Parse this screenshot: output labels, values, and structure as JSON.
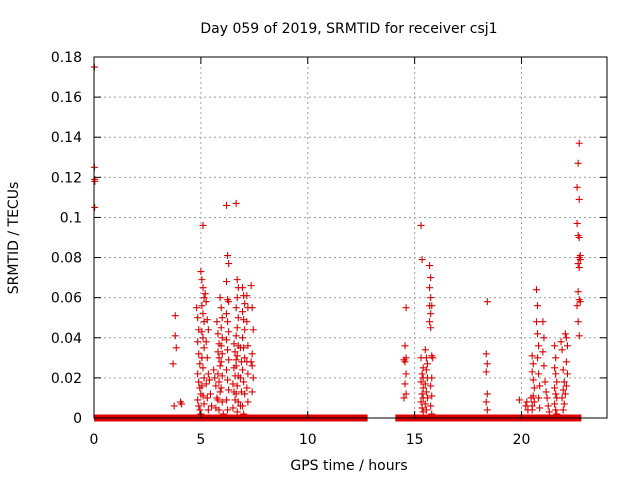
{
  "chart_data": {
    "type": "scatter",
    "title": "Day 059 of 2019, SRMTID for receiver csj1",
    "xlabel": "GPS time / hours",
    "ylabel": "SRMTID / TECUs",
    "xlim": [
      0,
      24
    ],
    "ylim": [
      0,
      0.18
    ],
    "x_ticks": [
      0,
      5,
      10,
      15,
      20
    ],
    "y_ticks": [
      0,
      0.02,
      0.04,
      0.06,
      0.08,
      0.1,
      0.12,
      0.14,
      0.16,
      0.18
    ],
    "x_tick_labels": [
      "0",
      "5",
      "10",
      "15",
      "20"
    ],
    "y_tick_labels": [
      "0",
      "0.02",
      "0.04",
      "0.06",
      "0.08",
      "0.1",
      "0.12",
      "0.14",
      "0.16",
      "0.18"
    ],
    "grid": true,
    "marker": "+",
    "color": "#dd0000",
    "baseline_segments": [
      [
        0,
        12.8
      ],
      [
        14.1,
        22.8
      ]
    ],
    "points": [
      [
        0.02,
        0.175
      ],
      [
        0.02,
        0.125
      ],
      [
        0.03,
        0.119
      ],
      [
        0.04,
        0.118
      ],
      [
        0.03,
        0.105
      ],
      [
        3.7,
        0.027
      ],
      [
        3.8,
        0.051
      ],
      [
        3.8,
        0.041
      ],
      [
        3.85,
        0.035
      ],
      [
        3.75,
        0.006
      ],
      [
        4.05,
        0.008
      ],
      [
        4.1,
        0.007
      ],
      [
        4.8,
        0.055
      ],
      [
        4.85,
        0.05
      ],
      [
        4.9,
        0.044
      ],
      [
        4.85,
        0.038
      ],
      [
        4.9,
        0.032
      ],
      [
        4.95,
        0.027
      ],
      [
        4.85,
        0.022
      ],
      [
        4.9,
        0.018
      ],
      [
        4.95,
        0.015
      ],
      [
        5.0,
        0.012
      ],
      [
        4.85,
        0.009
      ],
      [
        4.9,
        0.006
      ],
      [
        4.95,
        0.004
      ],
      [
        5.0,
        0.002
      ],
      [
        5.0,
        0.073
      ],
      [
        5.05,
        0.069
      ],
      [
        5.1,
        0.065
      ],
      [
        5.15,
        0.06
      ],
      [
        5.05,
        0.056
      ],
      [
        5.1,
        0.052
      ],
      [
        5.15,
        0.048
      ],
      [
        5.05,
        0.043
      ],
      [
        5.1,
        0.04
      ],
      [
        5.15,
        0.035
      ],
      [
        5.05,
        0.03
      ],
      [
        5.1,
        0.025
      ],
      [
        5.15,
        0.02
      ],
      [
        5.05,
        0.016
      ],
      [
        5.1,
        0.011
      ],
      [
        5.15,
        0.007
      ],
      [
        5.1,
        0.096
      ],
      [
        5.2,
        0.062
      ],
      [
        5.25,
        0.058
      ],
      [
        5.3,
        0.049
      ],
      [
        5.35,
        0.044
      ],
      [
        5.25,
        0.038
      ],
      [
        5.3,
        0.03
      ],
      [
        5.35,
        0.022
      ],
      [
        5.25,
        0.017
      ],
      [
        5.3,
        0.01
      ],
      [
        5.35,
        0.004
      ],
      [
        5.4,
        0.019
      ],
      [
        5.45,
        0.012
      ],
      [
        5.5,
        0.006
      ],
      [
        5.6,
        0.024
      ],
      [
        5.65,
        0.02
      ],
      [
        5.7,
        0.016
      ],
      [
        5.75,
        0.01
      ],
      [
        5.7,
        0.005
      ],
      [
        5.75,
        0.048
      ],
      [
        5.8,
        0.042
      ],
      [
        5.85,
        0.037
      ],
      [
        5.8,
        0.033
      ],
      [
        5.85,
        0.03
      ],
      [
        5.9,
        0.026
      ],
      [
        5.8,
        0.022
      ],
      [
        5.85,
        0.018
      ],
      [
        5.9,
        0.013
      ],
      [
        5.8,
        0.009
      ],
      [
        5.85,
        0.004
      ],
      [
        5.9,
        0.06
      ],
      [
        5.95,
        0.055
      ],
      [
        6.0,
        0.05
      ],
      [
        5.95,
        0.045
      ],
      [
        6.0,
        0.04
      ],
      [
        5.95,
        0.036
      ],
      [
        6.0,
        0.032
      ],
      [
        5.95,
        0.028
      ],
      [
        6.0,
        0.021
      ],
      [
        5.95,
        0.015
      ],
      [
        6.0,
        0.008
      ],
      [
        6.05,
        0.002
      ],
      [
        6.2,
        0.106
      ],
      [
        6.25,
        0.081
      ],
      [
        6.3,
        0.077
      ],
      [
        6.2,
        0.068
      ],
      [
        6.25,
        0.059
      ],
      [
        6.3,
        0.058
      ],
      [
        6.2,
        0.052
      ],
      [
        6.25,
        0.048
      ],
      [
        6.3,
        0.043
      ],
      [
        6.2,
        0.039
      ],
      [
        6.25,
        0.034
      ],
      [
        6.3,
        0.029
      ],
      [
        6.2,
        0.024
      ],
      [
        6.25,
        0.019
      ],
      [
        6.3,
        0.014
      ],
      [
        6.2,
        0.009
      ],
      [
        6.25,
        0.004
      ],
      [
        6.5,
        0.017
      ],
      [
        6.55,
        0.013
      ],
      [
        6.6,
        0.009
      ],
      [
        6.5,
        0.005
      ],
      [
        6.55,
        0.037
      ],
      [
        6.6,
        0.033
      ],
      [
        6.65,
        0.029
      ],
      [
        6.55,
        0.025
      ],
      [
        6.6,
        0.021
      ],
      [
        6.65,
        0.107
      ],
      [
        6.7,
        0.069
      ],
      [
        6.75,
        0.065
      ],
      [
        6.7,
        0.06
      ],
      [
        6.65,
        0.055
      ],
      [
        6.75,
        0.05
      ],
      [
        6.7,
        0.045
      ],
      [
        6.65,
        0.041
      ],
      [
        6.75,
        0.036
      ],
      [
        6.7,
        0.031
      ],
      [
        6.65,
        0.026
      ],
      [
        6.75,
        0.021
      ],
      [
        6.7,
        0.016
      ],
      [
        6.65,
        0.012
      ],
      [
        6.75,
        0.008
      ],
      [
        6.7,
        0.003
      ],
      [
        6.85,
        0.035
      ],
      [
        6.9,
        0.028
      ],
      [
        6.85,
        0.02
      ],
      [
        6.9,
        0.013
      ],
      [
        6.85,
        0.006
      ],
      [
        6.95,
        0.065
      ],
      [
        7.0,
        0.061
      ],
      [
        7.05,
        0.057
      ],
      [
        6.95,
        0.053
      ],
      [
        7.0,
        0.049
      ],
      [
        7.05,
        0.044
      ],
      [
        6.95,
        0.04
      ],
      [
        7.0,
        0.035
      ],
      [
        7.05,
        0.03
      ],
      [
        6.95,
        0.024
      ],
      [
        7.0,
        0.018
      ],
      [
        7.05,
        0.012
      ],
      [
        6.95,
        0.006
      ],
      [
        7.0,
        0.002
      ],
      [
        7.15,
        0.061
      ],
      [
        7.2,
        0.055
      ],
      [
        7.15,
        0.048
      ],
      [
        7.2,
        0.036
      ],
      [
        7.15,
        0.028
      ],
      [
        7.2,
        0.022
      ],
      [
        7.15,
        0.015
      ],
      [
        7.2,
        0.008
      ],
      [
        7.35,
        0.066
      ],
      [
        7.4,
        0.055
      ],
      [
        7.45,
        0.044
      ],
      [
        7.4,
        0.032
      ],
      [
        7.35,
        0.028
      ],
      [
        7.4,
        0.026
      ],
      [
        7.45,
        0.02
      ],
      [
        7.4,
        0.013
      ],
      [
        14.6,
        0.055
      ],
      [
        14.55,
        0.036
      ],
      [
        14.6,
        0.03
      ],
      [
        14.5,
        0.029
      ],
      [
        14.55,
        0.028
      ],
      [
        14.6,
        0.022
      ],
      [
        14.55,
        0.017
      ],
      [
        14.6,
        0.012
      ],
      [
        14.5,
        0.01
      ],
      [
        15.3,
        0.096
      ],
      [
        15.35,
        0.079
      ],
      [
        15.3,
        0.03
      ],
      [
        15.4,
        0.025
      ],
      [
        15.35,
        0.022
      ],
      [
        15.4,
        0.02
      ],
      [
        15.3,
        0.018
      ],
      [
        15.4,
        0.015
      ],
      [
        15.35,
        0.012
      ],
      [
        15.4,
        0.01
      ],
      [
        15.3,
        0.008
      ],
      [
        15.35,
        0.005
      ],
      [
        15.4,
        0.003
      ],
      [
        15.5,
        0.034
      ],
      [
        15.55,
        0.03
      ],
      [
        15.6,
        0.027
      ],
      [
        15.55,
        0.024
      ],
      [
        15.6,
        0.02
      ],
      [
        15.5,
        0.017
      ],
      [
        15.55,
        0.013
      ],
      [
        15.6,
        0.01
      ],
      [
        15.5,
        0.007
      ],
      [
        15.55,
        0.004
      ],
      [
        15.7,
        0.076
      ],
      [
        15.75,
        0.07
      ],
      [
        15.7,
        0.065
      ],
      [
        15.75,
        0.06
      ],
      [
        15.7,
        0.056
      ],
      [
        15.8,
        0.056
      ],
      [
        15.75,
        0.052
      ],
      [
        15.7,
        0.048
      ],
      [
        15.75,
        0.045
      ],
      [
        15.8,
        0.031
      ],
      [
        15.85,
        0.03
      ],
      [
        15.8,
        0.02
      ],
      [
        15.75,
        0.016
      ],
      [
        15.8,
        0.011
      ],
      [
        15.75,
        0.006
      ],
      [
        15.8,
        0.002
      ],
      [
        18.4,
        0.058
      ],
      [
        18.35,
        0.032
      ],
      [
        18.4,
        0.027
      ],
      [
        18.35,
        0.023
      ],
      [
        18.4,
        0.012
      ],
      [
        18.35,
        0.008
      ],
      [
        18.4,
        0.004
      ],
      [
        19.9,
        0.009
      ],
      [
        20.2,
        0.006
      ],
      [
        20.25,
        0.008
      ],
      [
        20.3,
        0.004
      ],
      [
        20.45,
        0.01
      ],
      [
        20.5,
        0.006
      ],
      [
        20.5,
        0.031
      ],
      [
        20.55,
        0.027
      ],
      [
        20.5,
        0.023
      ],
      [
        20.55,
        0.019
      ],
      [
        20.6,
        0.015
      ],
      [
        20.55,
        0.011
      ],
      [
        20.6,
        0.008
      ],
      [
        20.5,
        0.004
      ],
      [
        20.7,
        0.064
      ],
      [
        20.75,
        0.056
      ],
      [
        20.7,
        0.048
      ],
      [
        20.75,
        0.042
      ],
      [
        20.8,
        0.036
      ],
      [
        20.75,
        0.03
      ],
      [
        20.8,
        0.022
      ],
      [
        20.85,
        0.016
      ],
      [
        20.8,
        0.01
      ],
      [
        20.85,
        0.005
      ],
      [
        21.0,
        0.048
      ],
      [
        21.05,
        0.04
      ],
      [
        21.0,
        0.033
      ],
      [
        21.05,
        0.026
      ],
      [
        21.1,
        0.018
      ],
      [
        21.15,
        0.013
      ],
      [
        21.2,
        0.01
      ],
      [
        21.25,
        0.006
      ],
      [
        21.3,
        0.003
      ],
      [
        21.55,
        0.036
      ],
      [
        21.6,
        0.03
      ],
      [
        21.55,
        0.025
      ],
      [
        21.6,
        0.022
      ],
      [
        21.65,
        0.018
      ],
      [
        21.55,
        0.015
      ],
      [
        21.6,
        0.012
      ],
      [
        21.65,
        0.01
      ],
      [
        21.55,
        0.007
      ],
      [
        21.6,
        0.004
      ],
      [
        21.65,
        0.002
      ],
      [
        21.85,
        0.038
      ],
      [
        21.9,
        0.034
      ],
      [
        21.95,
        0.024
      ],
      [
        22.0,
        0.018
      ],
      [
        21.95,
        0.014
      ],
      [
        21.9,
        0.01
      ],
      [
        22.0,
        0.007
      ],
      [
        21.95,
        0.004
      ],
      [
        22.05,
        0.042
      ],
      [
        22.1,
        0.04
      ],
      [
        22.15,
        0.036
      ],
      [
        22.1,
        0.028
      ],
      [
        22.15,
        0.022
      ],
      [
        22.1,
        0.016
      ],
      [
        22.05,
        0.012
      ],
      [
        22.7,
        0.137
      ],
      [
        22.65,
        0.127
      ],
      [
        22.6,
        0.115
      ],
      [
        22.7,
        0.109
      ],
      [
        22.6,
        0.097
      ],
      [
        22.65,
        0.091
      ],
      [
        22.7,
        0.09
      ],
      [
        22.75,
        0.081
      ],
      [
        22.7,
        0.08
      ],
      [
        22.75,
        0.079
      ],
      [
        22.65,
        0.077
      ],
      [
        22.7,
        0.075
      ],
      [
        22.65,
        0.063
      ],
      [
        22.7,
        0.059
      ],
      [
        22.75,
        0.058
      ],
      [
        22.6,
        0.056
      ],
      [
        22.65,
        0.048
      ],
      [
        22.7,
        0.041
      ]
    ]
  }
}
